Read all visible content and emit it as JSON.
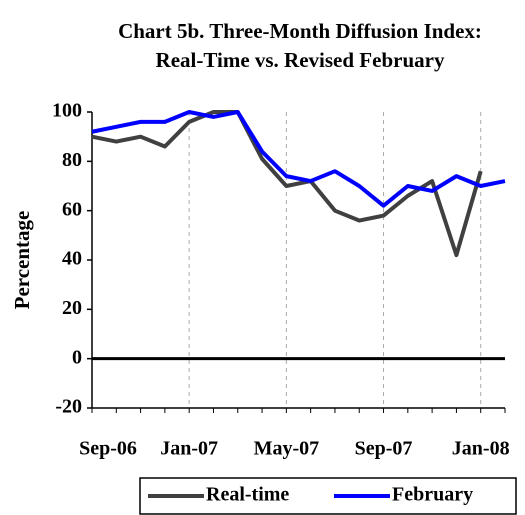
{
  "chart_data": {
    "type": "line",
    "title": "Chart 5b. Three-Month Diffusion Index:",
    "subtitle": "Real-Time vs.  Revised February",
    "y_label": "Percentage",
    "categories": [
      "Sep-06",
      null,
      null,
      null,
      "Jan-07",
      null,
      null,
      null,
      "May-07",
      null,
      null,
      null,
      "Sep-07",
      null,
      null,
      null,
      "Jan-08",
      null
    ],
    "series": [
      {
        "name": "Real-time",
        "color": "#404040",
        "values": [
          90,
          88,
          90,
          86,
          96,
          100,
          100,
          81,
          70,
          72,
          60,
          56,
          58,
          66,
          72,
          42,
          76,
          null
        ]
      },
      {
        "name": "February",
        "color": "#0000ff",
        "values": [
          92,
          94,
          96,
          96,
          100,
          98,
          100,
          84,
          74,
          72,
          76,
          70,
          62,
          70,
          68,
          74,
          70,
          72
        ]
      }
    ],
    "ylim": [
      -20,
      100
    ],
    "yticks": [
      -20,
      0,
      20,
      40,
      60,
      80,
      100
    ],
    "grid": "vertical-dashed",
    "legend": "bottom"
  }
}
